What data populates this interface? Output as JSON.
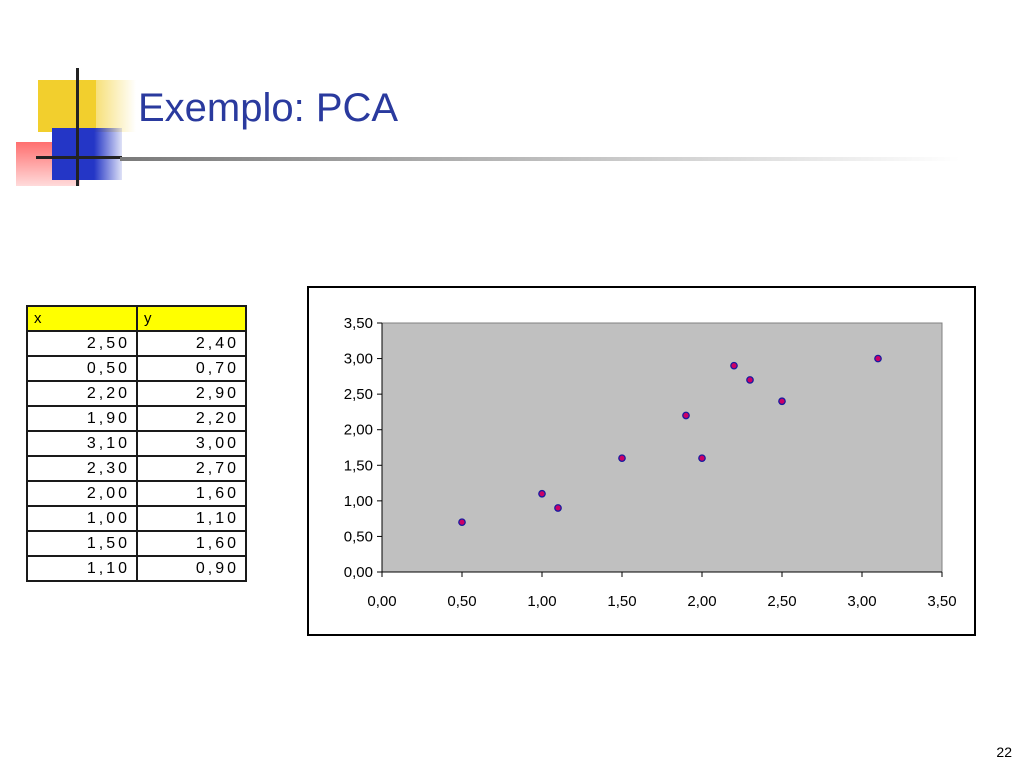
{
  "slide": {
    "title": "Exemplo: PCA",
    "page_number": "22"
  },
  "table": {
    "headers": [
      "x",
      "y"
    ],
    "rows": [
      [
        "2,50",
        "2,40"
      ],
      [
        "0,50",
        "0,70"
      ],
      [
        "2,20",
        "2,90"
      ],
      [
        "1,90",
        "2,20"
      ],
      [
        "3,10",
        "3,00"
      ],
      [
        "2,30",
        "2,70"
      ],
      [
        "2,00",
        "1,60"
      ],
      [
        "1,00",
        "1,10"
      ],
      [
        "1,50",
        "1,60"
      ],
      [
        "1,10",
        "0,90"
      ]
    ]
  },
  "chart_data": {
    "type": "scatter",
    "series": [
      {
        "x": [
          2.5,
          0.5,
          2.2,
          1.9,
          3.1,
          2.3,
          2.0,
          1.0,
          1.5,
          1.1
        ],
        "y": [
          2.4,
          0.7,
          2.9,
          2.2,
          3.0,
          2.7,
          1.6,
          1.1,
          1.6,
          0.9
        ]
      }
    ],
    "xlim": [
      0,
      3.5
    ],
    "ylim": [
      0,
      3.5
    ],
    "x_ticks": [
      "0,00",
      "0,50",
      "1,00",
      "1,50",
      "2,00",
      "2,50",
      "3,00",
      "3,50"
    ],
    "y_ticks": [
      "0,00",
      "0,50",
      "1,00",
      "1,50",
      "2,00",
      "2,50",
      "3,00",
      "3,50"
    ],
    "plot_background": "#c0c0c0",
    "marker_color": "#cc0066",
    "marker_edge": "#1a1aa0",
    "grid": false,
    "legend": "none"
  },
  "colors": {
    "title": "#2a3a9e",
    "header_fill": "#ffff00"
  }
}
